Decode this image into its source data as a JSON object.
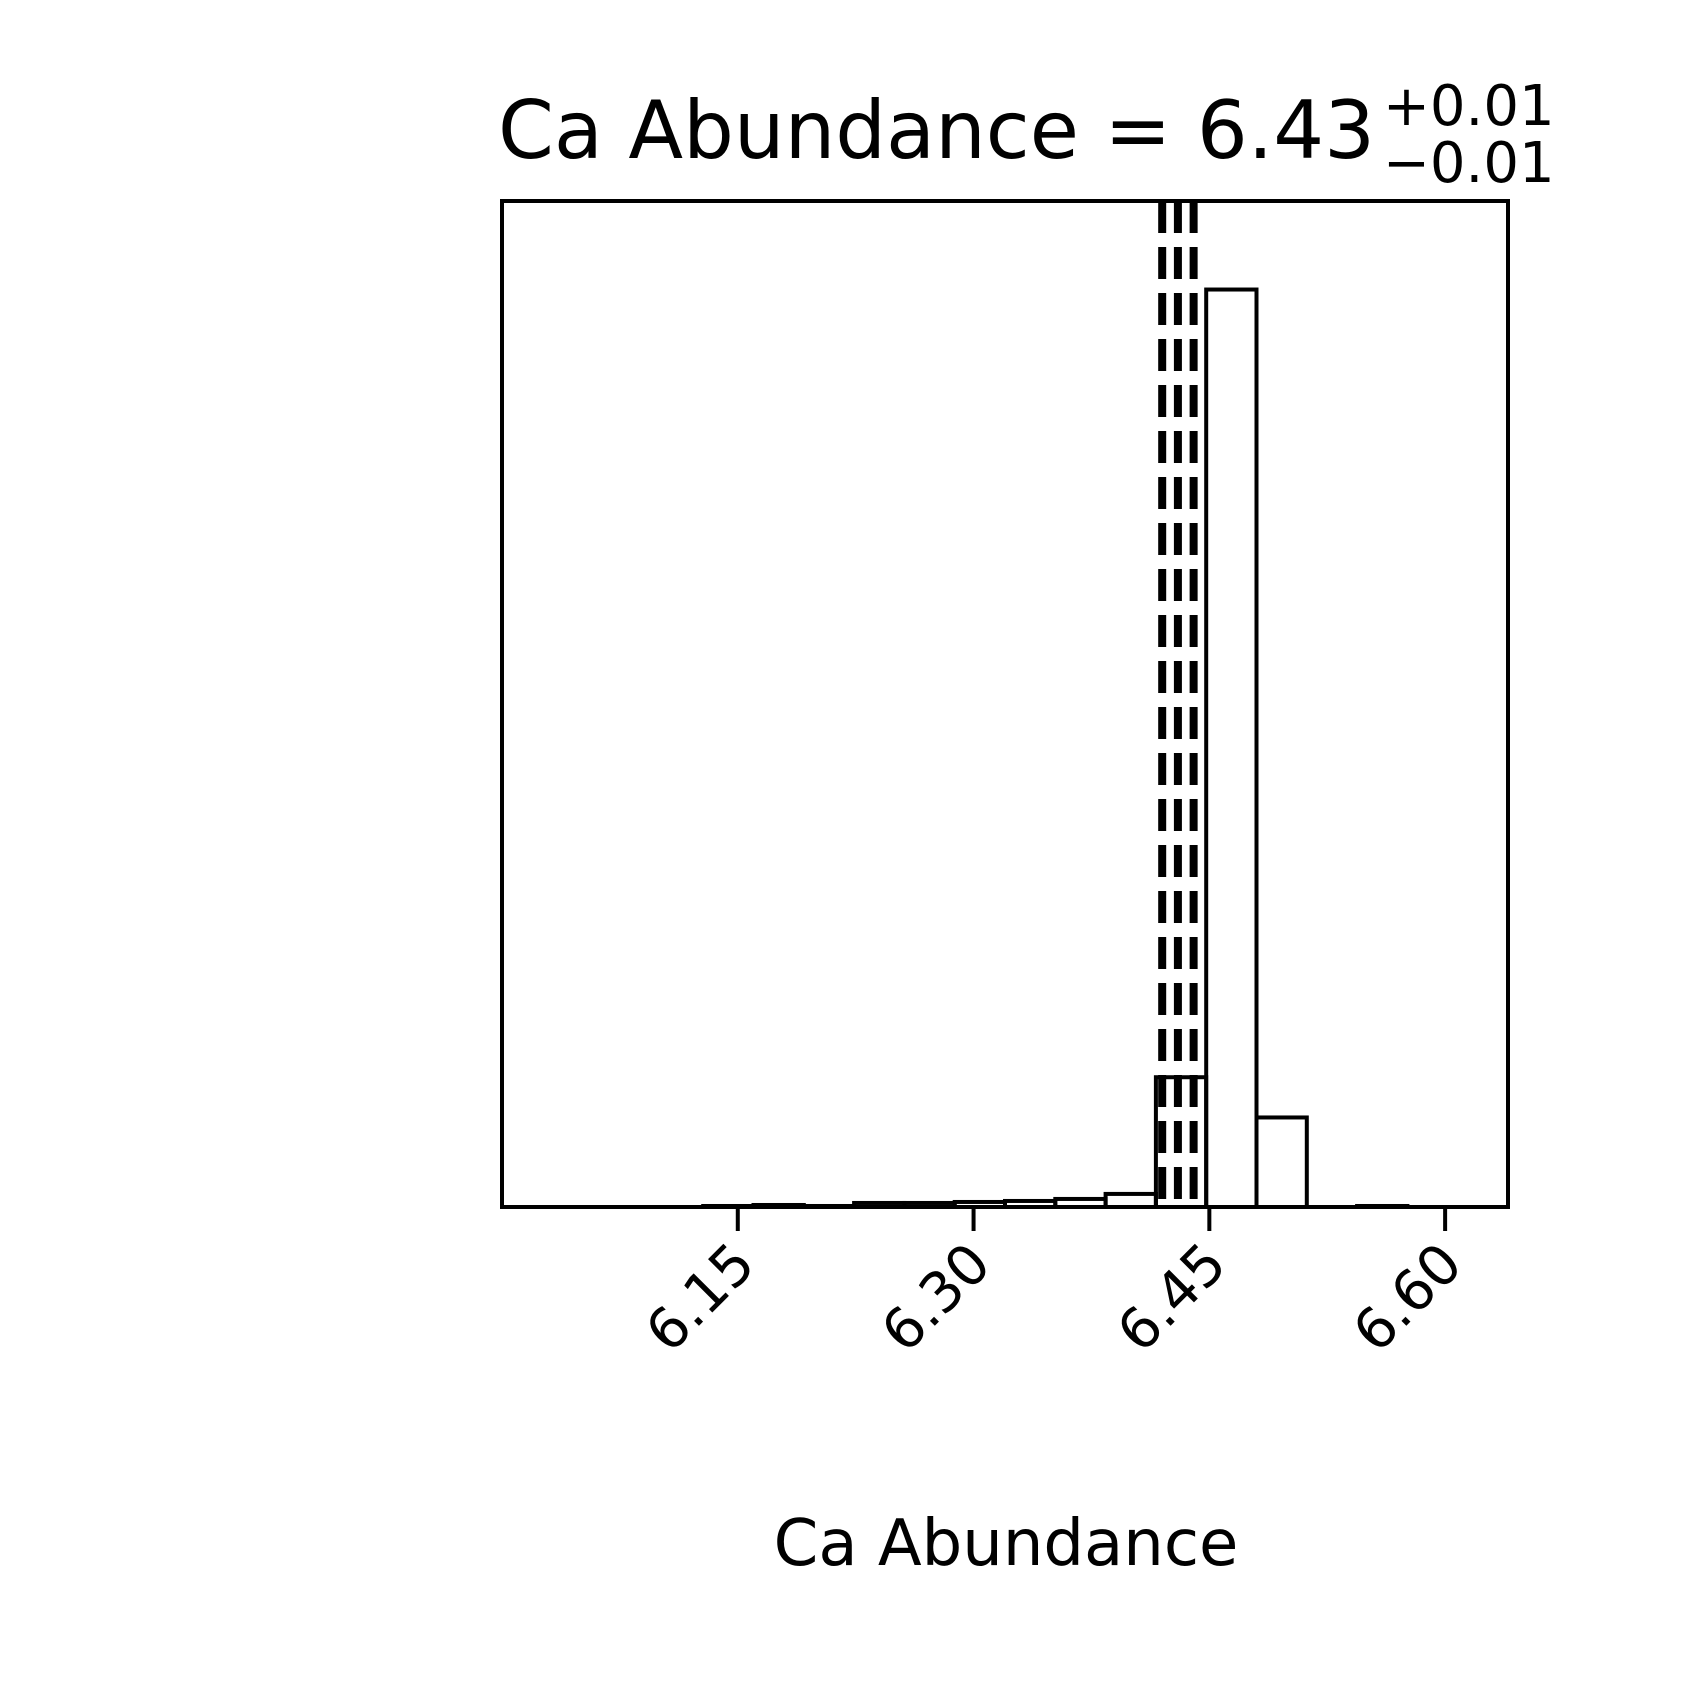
{
  "chart_data": {
    "type": "bar",
    "title": {
      "main": "Ca Abundance = 6.43",
      "upper_err": "+0.01",
      "lower_err": "−0.01"
    },
    "xlabel": "Ca Abundance",
    "ylabel": "",
    "xlim": [
      6.0,
      6.64
    ],
    "ylim": [
      0,
      1.0
    ],
    "x_ticks": [
      6.15,
      6.3,
      6.45,
      6.6
    ],
    "x_tick_labels": [
      "6.15",
      "6.30",
      "6.45",
      "6.60"
    ],
    "bin_edges": [
      6.0,
      6.032,
      6.064,
      6.096,
      6.128,
      6.16,
      6.192,
      6.224,
      6.256,
      6.288,
      6.32,
      6.352,
      6.384,
      6.416,
      6.448,
      6.48,
      6.512,
      6.544,
      6.576,
      6.608,
      6.64
    ],
    "counts": [
      0.0,
      0.0,
      0.0,
      0.0,
      0.001,
      0.002,
      0.001,
      0.004,
      0.004,
      0.005,
      0.006,
      0.008,
      0.013,
      0.129,
      0.912,
      0.089,
      0.0,
      0.001,
      0.0,
      0.0
    ],
    "quantile_lines": [
      6.42,
      6.43,
      6.44
    ],
    "line_style": "dashed",
    "color": "#000000",
    "grid": false,
    "y_ticks_visible": false
  }
}
